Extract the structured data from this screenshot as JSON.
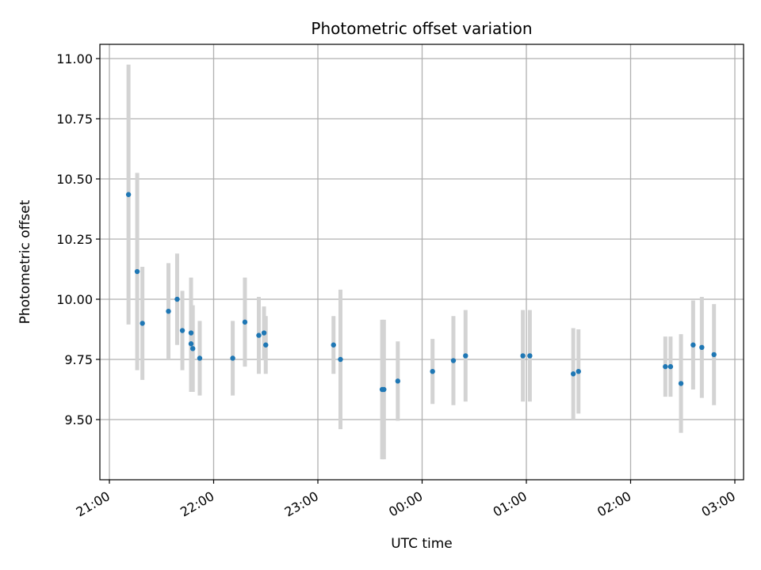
{
  "chart_data": {
    "type": "scatter",
    "title": "Photometric offset variation",
    "xlabel": "UTC time",
    "ylabel": "Photometric offset",
    "x_ticks": [
      "21:00",
      "22:00",
      "23:00",
      "00:00",
      "01:00",
      "02:00",
      "03:00"
    ],
    "y_ticks": [
      "9.50",
      "9.75",
      "10.00",
      "10.25",
      "10.50",
      "10.75",
      "11.00"
    ],
    "ylim": [
      9.27,
      11.055
    ],
    "grid": true,
    "colors": {
      "point": "#1f77b4",
      "errorbar": "#d3d3d3",
      "grid": "#b0b0b0"
    },
    "points": [
      {
        "t": "21:11",
        "y": 10.435,
        "err": 0.54
      },
      {
        "t": "21:16",
        "y": 10.115,
        "err": 0.41
      },
      {
        "t": "21:19",
        "y": 9.9,
        "err": 0.235
      },
      {
        "t": "21:34",
        "y": 9.95,
        "err": 0.2
      },
      {
        "t": "21:39",
        "y": 10.0,
        "err": 0.19
      },
      {
        "t": "21:42",
        "y": 9.87,
        "err": 0.165
      },
      {
        "t": "21:47",
        "y": 9.86,
        "err": 0.23
      },
      {
        "t": "21:47",
        "y": 9.815,
        "err": 0.2
      },
      {
        "t": "21:48",
        "y": 9.795,
        "err": 0.18
      },
      {
        "t": "21:52",
        "y": 9.755,
        "err": 0.155
      },
      {
        "t": "22:11",
        "y": 9.755,
        "err": 0.155
      },
      {
        "t": "22:18",
        "y": 9.905,
        "err": 0.185
      },
      {
        "t": "22:26",
        "y": 9.85,
        "err": 0.16
      },
      {
        "t": "22:29",
        "y": 9.86,
        "err": 0.11
      },
      {
        "t": "22:30",
        "y": 9.81,
        "err": 0.12
      },
      {
        "t": "23:09",
        "y": 9.81,
        "err": 0.12
      },
      {
        "t": "23:13",
        "y": 9.75,
        "err": 0.29
      },
      {
        "t": "23:37",
        "y": 9.625,
        "err": 0.29
      },
      {
        "t": "23:38",
        "y": 9.625,
        "err": 0.29
      },
      {
        "t": "23:46",
        "y": 9.66,
        "err": 0.165
      },
      {
        "t": "00:06",
        "y": 9.7,
        "err": 0.135
      },
      {
        "t": "00:18",
        "y": 9.745,
        "err": 0.185
      },
      {
        "t": "00:25",
        "y": 9.765,
        "err": 0.19
      },
      {
        "t": "00:58",
        "y": 9.765,
        "err": 0.19
      },
      {
        "t": "01:02",
        "y": 9.765,
        "err": 0.19
      },
      {
        "t": "01:27",
        "y": 9.69,
        "err": 0.19
      },
      {
        "t": "01:30",
        "y": 9.7,
        "err": 0.175
      },
      {
        "t": "02:20",
        "y": 9.72,
        "err": 0.125
      },
      {
        "t": "02:23",
        "y": 9.72,
        "err": 0.125
      },
      {
        "t": "02:29",
        "y": 9.65,
        "err": 0.205
      },
      {
        "t": "02:36",
        "y": 9.81,
        "err": 0.185
      },
      {
        "t": "02:41",
        "y": 9.8,
        "err": 0.21
      },
      {
        "t": "02:48",
        "y": 9.77,
        "err": 0.21
      }
    ]
  }
}
